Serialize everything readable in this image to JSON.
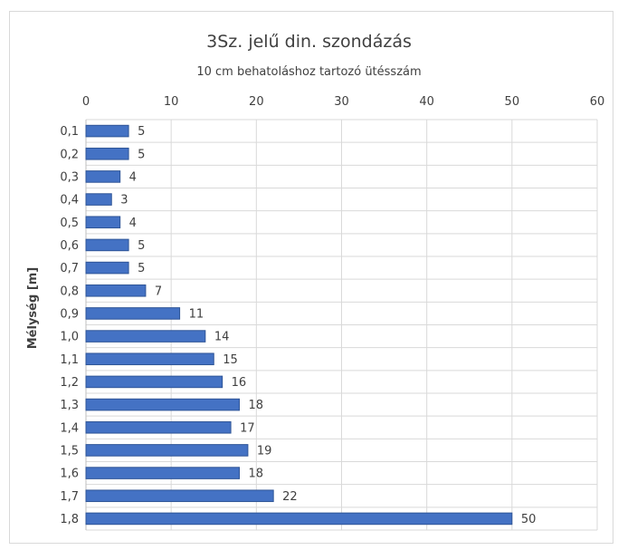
{
  "chart_data": {
    "type": "bar",
    "orientation": "horizontal",
    "title": "3Sz. jelű din. szondázás",
    "subtitle": "10 cm behatoláshoz tartozó ütésszám",
    "xlabel": "10 cm behatoláshoz tartozó ütésszám",
    "ylabel": "Mélység [m]",
    "xlim": [
      0,
      60
    ],
    "xticks": [
      "0",
      "10",
      "20",
      "30",
      "40",
      "50",
      "60"
    ],
    "x_axis_position": "top",
    "grid": true,
    "categories": [
      "0,1",
      "0,2",
      "0,3",
      "0,4",
      "0,5",
      "0,6",
      "0,7",
      "0,8",
      "0,9",
      "1,0",
      "1,1",
      "1,2",
      "1,3",
      "1,4",
      "1,5",
      "1,6",
      "1,7",
      "1,8"
    ],
    "values": [
      5,
      5,
      4,
      3,
      4,
      5,
      5,
      7,
      11,
      14,
      15,
      16,
      18,
      17,
      19,
      18,
      22,
      50
    ],
    "value_labels": [
      "5",
      "5",
      "4",
      "3",
      "4",
      "5",
      "5",
      "7",
      "11",
      "14",
      "15",
      "16",
      "18",
      "17",
      "19",
      "18",
      "22",
      "50"
    ],
    "bar_color": "#4472c4",
    "bar_edge_color": "#2f5597",
    "grid_color": "#d9d9d9"
  }
}
